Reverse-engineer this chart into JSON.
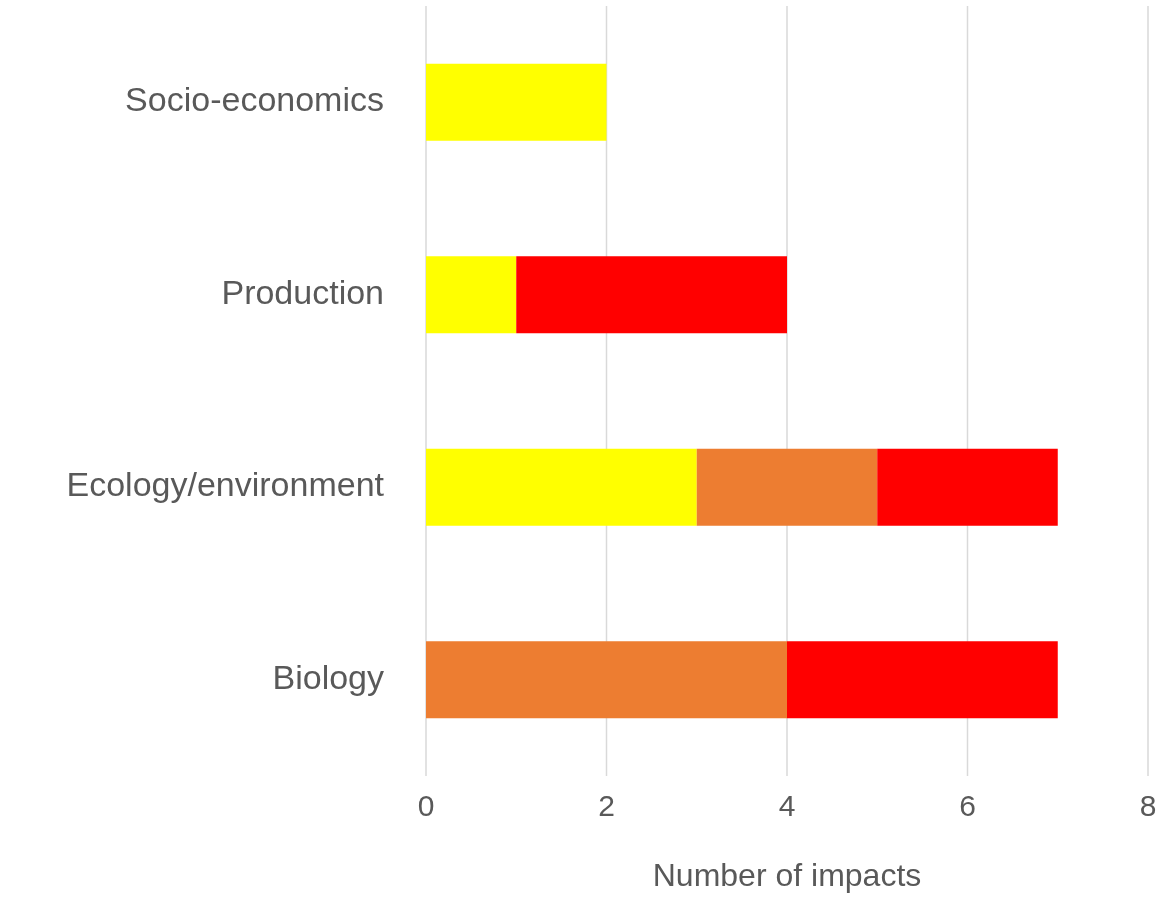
{
  "chart_data": {
    "type": "bar",
    "orientation": "horizontal",
    "stacked": true,
    "xlabel": "Number of impacts",
    "categories": [
      "Socio-economics",
      "Production",
      "Ecology/environment",
      "Biology"
    ],
    "series": [
      {
        "color": "#ffff00",
        "values": [
          2,
          1,
          3,
          null
        ]
      },
      {
        "color": "#ed7d31",
        "values": [
          null,
          null,
          2,
          4
        ]
      },
      {
        "color": "#ff0000",
        "values": [
          null,
          3,
          2,
          3
        ]
      }
    ],
    "xlim": [
      0,
      8
    ],
    "xticks": [
      0,
      2,
      4,
      6,
      8
    ],
    "grid": "x"
  }
}
